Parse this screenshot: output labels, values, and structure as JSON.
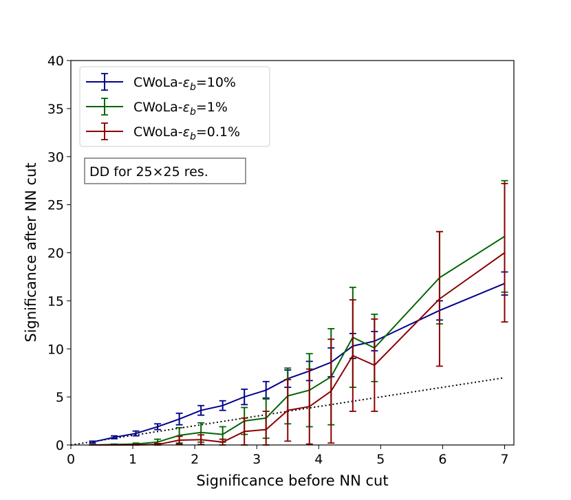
{
  "chart_data": {
    "type": "line",
    "title": "",
    "xlabel": "Significance before NN cut",
    "ylabel": "Significance after NN cut",
    "xlim": [
      0,
      7.15
    ],
    "ylim": [
      0,
      40
    ],
    "xticks": [
      0,
      1,
      2,
      3,
      4,
      5,
      6,
      7
    ],
    "yticks": [
      0,
      5,
      10,
      15,
      20,
      25,
      30,
      35,
      40
    ],
    "grid": false,
    "legend_position": "top-left",
    "annotation": "DD for 25×25 res.",
    "reference_line": {
      "name": "y = x",
      "style": "dotted",
      "color": "#000000",
      "x": [
        0,
        7
      ],
      "y": [
        0,
        7
      ]
    },
    "series": [
      {
        "name": "CWoLa-",
        "name_symbol": "ε",
        "name_sub": "b",
        "name_suffix": "=10%",
        "color": "#00008b",
        "x": [
          0.35,
          0.7,
          1.05,
          1.4,
          1.75,
          2.1,
          2.45,
          2.8,
          3.15,
          3.5,
          3.85,
          4.2,
          4.55,
          4.9,
          5.95,
          7.0
        ],
        "y": [
          0.3,
          0.8,
          1.2,
          1.9,
          2.7,
          3.6,
          4.1,
          5.0,
          5.7,
          6.9,
          7.7,
          8.6,
          10.3,
          10.8,
          14.0,
          16.8
        ],
        "yerr": [
          0.1,
          0.15,
          0.25,
          0.3,
          0.6,
          0.5,
          0.5,
          0.8,
          0.9,
          0.9,
          1.0,
          1.5,
          1.3,
          1.0,
          1.0,
          1.2
        ]
      },
      {
        "name": "CWoLa-",
        "name_symbol": "ε",
        "name_sub": "b",
        "name_suffix": "=1%",
        "color": "#006400",
        "x": [
          0.35,
          0.7,
          1.05,
          1.4,
          1.75,
          2.1,
          2.45,
          2.8,
          3.15,
          3.5,
          3.85,
          4.2,
          4.55,
          4.9,
          5.95,
          7.0
        ],
        "y": [
          0.0,
          0.05,
          0.1,
          0.3,
          1.0,
          1.3,
          1.1,
          2.5,
          2.8,
          5.1,
          5.7,
          7.1,
          11.2,
          10.1,
          17.4,
          21.7
        ],
        "yerr": [
          0.05,
          0.05,
          0.1,
          0.3,
          0.8,
          1.0,
          0.8,
          1.4,
          2.1,
          2.9,
          3.8,
          5.0,
          5.2,
          3.5,
          4.8,
          5.8
        ]
      },
      {
        "name": "CWoLa-",
        "name_symbol": "ε",
        "name_sub": "b",
        "name_suffix": "=0.1%",
        "color": "#8b0000",
        "x": [
          0.35,
          0.7,
          1.05,
          1.4,
          1.75,
          2.1,
          2.45,
          2.8,
          3.15,
          3.5,
          3.85,
          4.2,
          4.55,
          4.9,
          5.95,
          7.0
        ],
        "y": [
          0.0,
          0.0,
          0.0,
          0.05,
          0.5,
          0.55,
          0.3,
          1.4,
          1.6,
          3.6,
          4.0,
          5.6,
          9.3,
          8.3,
          15.2,
          20.0
        ],
        "yerr": [
          0.0,
          0.0,
          0.05,
          0.1,
          0.4,
          0.5,
          0.3,
          1.4,
          1.9,
          3.2,
          3.9,
          5.4,
          5.8,
          4.8,
          7.0,
          7.2
        ]
      }
    ]
  }
}
